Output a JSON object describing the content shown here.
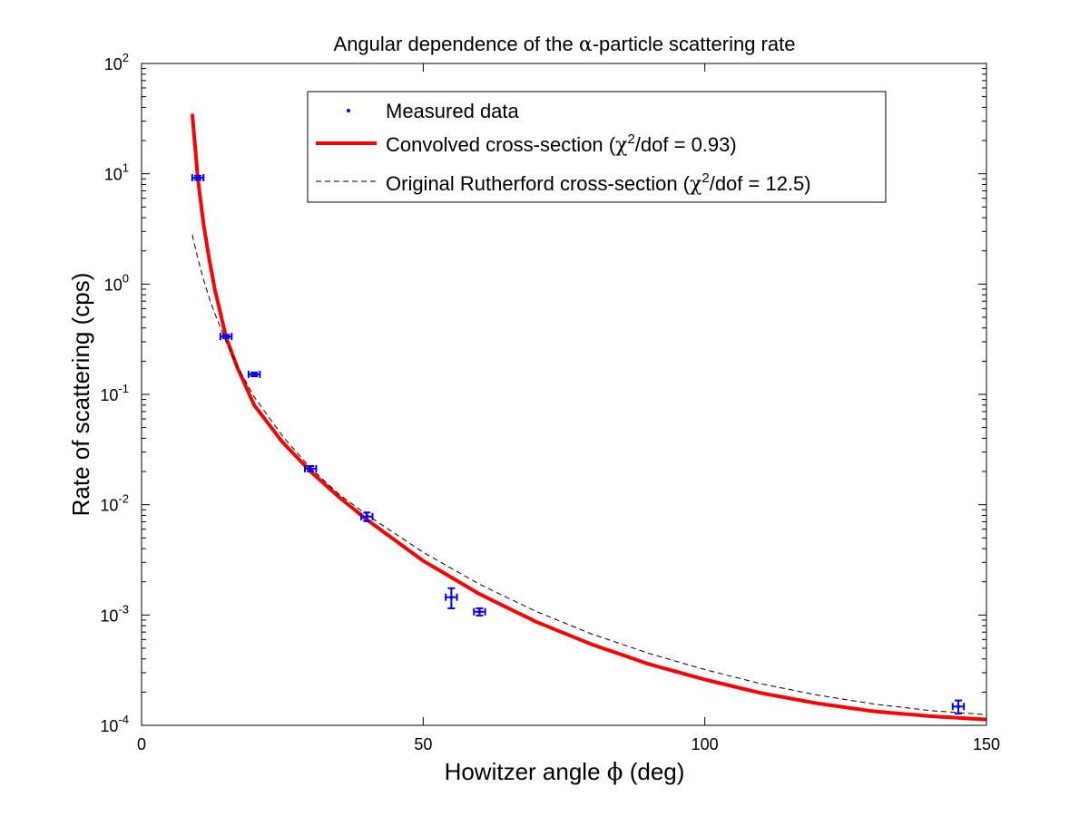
{
  "chart_data": {
    "type": "scatter",
    "title_parts": [
      "Angular dependence of the ",
      "α",
      "-particle scattering rate"
    ],
    "xlabel_parts": [
      "Howitzer angle ",
      "ϕ",
      " (deg)"
    ],
    "ylabel": "Rate of scattering (cps)",
    "xlim": [
      0,
      150
    ],
    "ylim": [
      0.0001,
      100
    ],
    "yscale": "log",
    "xticks": [
      0,
      50,
      100,
      150
    ],
    "xtick_labels": [
      "0",
      "50",
      "100",
      "150"
    ],
    "yticks_exp": [
      -4,
      -3,
      -2,
      -1,
      0,
      1,
      2
    ],
    "ytick_base": "10",
    "grid": false,
    "legend_position": "top-center",
    "series": [
      {
        "name": "Measured data",
        "kind": "errorbar",
        "color": "#0000ff",
        "points": [
          {
            "x": 10,
            "y": 9.2,
            "xerr": 1.0,
            "yerr_lo": 0.4,
            "yerr_hi": 0.4
          },
          {
            "x": 15,
            "y": 0.335,
            "xerr": 1.0,
            "yerr_lo": 0.012,
            "yerr_hi": 0.012
          },
          {
            "x": 20,
            "y": 0.152,
            "xerr": 1.0,
            "yerr_lo": 0.006,
            "yerr_hi": 0.006
          },
          {
            "x": 30,
            "y": 0.0212,
            "xerr": 1.0,
            "yerr_lo": 0.0012,
            "yerr_hi": 0.0012
          },
          {
            "x": 40,
            "y": 0.0078,
            "xerr": 1.0,
            "yerr_lo": 0.0007,
            "yerr_hi": 0.0007
          },
          {
            "x": 55,
            "y": 0.00145,
            "xerr": 1.0,
            "yerr_lo": 0.0003,
            "yerr_hi": 0.0003
          },
          {
            "x": 60,
            "y": 0.00107,
            "xerr": 1.0,
            "yerr_lo": 8e-05,
            "yerr_hi": 8e-05
          },
          {
            "x": 145,
            "y": 0.000148,
            "xerr": 1.0,
            "yerr_lo": 2e-05,
            "yerr_hi": 2e-05
          }
        ]
      },
      {
        "name": "Convolved cross-section (χ²/dof = 0.93)",
        "kind": "line",
        "color": "#ff0000",
        "style": "solid",
        "x": [
          9,
          10,
          11,
          12,
          13,
          15,
          17,
          20,
          25,
          30,
          35,
          40,
          50,
          60,
          70,
          80,
          90,
          100,
          110,
          120,
          130,
          140,
          150
        ],
        "y": [
          35,
          9.0,
          3.5,
          1.7,
          0.9,
          0.33,
          0.175,
          0.08,
          0.037,
          0.02,
          0.0118,
          0.0073,
          0.0031,
          0.00155,
          0.00087,
          0.00054,
          0.00036,
          0.00026,
          0.000196,
          0.000158,
          0.000134,
          0.000121,
          0.000113
        ]
      },
      {
        "name": "Original Rutherford cross-section (χ²/dof = 12.5)",
        "kind": "line",
        "color": "#000000",
        "style": "dashed",
        "x": [
          9,
          10,
          11,
          12,
          13,
          15,
          17,
          20,
          25,
          30,
          35,
          40,
          50,
          60,
          70,
          80,
          90,
          100,
          110,
          120,
          130,
          140,
          150
        ],
        "y": [
          2.8,
          1.7,
          1.1,
          0.75,
          0.54,
          0.3,
          0.18,
          0.095,
          0.042,
          0.0215,
          0.0125,
          0.0081,
          0.0037,
          0.0019,
          0.00108,
          0.00067,
          0.00045,
          0.00032,
          0.000238,
          0.000188,
          0.000156,
          0.000136,
          0.000125
        ]
      }
    ],
    "legend": {
      "entries": [
        {
          "label": "Measured data"
        },
        {
          "label_parts": [
            "Convolved cross-section (",
            "χ",
            "2",
            "/dof = 0.93)"
          ]
        },
        {
          "label_parts": [
            "Original Rutherford cross-section (",
            "χ",
            "2",
            "/dof = 12.5)"
          ]
        }
      ]
    }
  }
}
